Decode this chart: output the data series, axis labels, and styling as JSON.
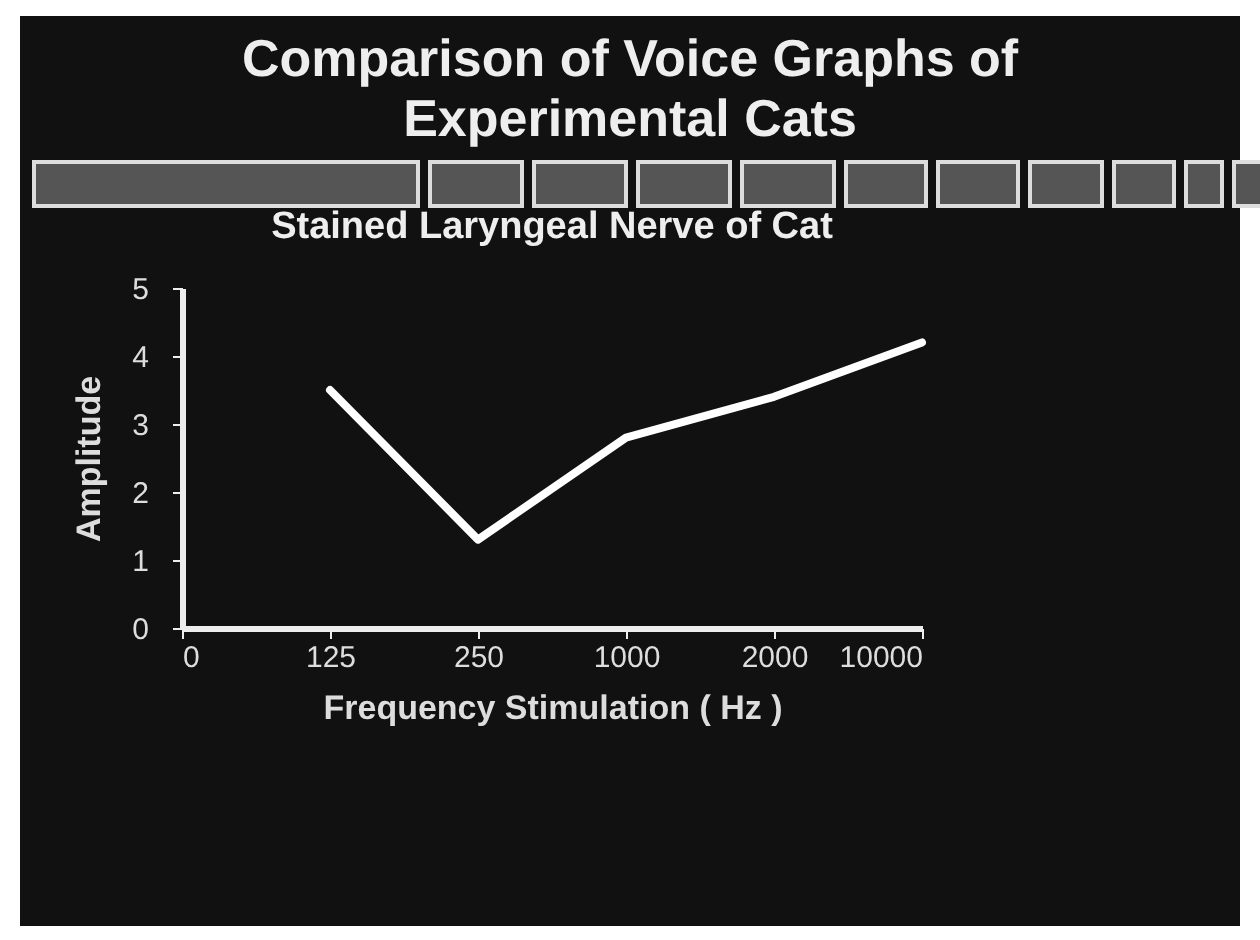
{
  "chart_data": {
    "type": "line",
    "title": "Comparison of Voice Graphs of Experimental Cats",
    "subtitle": "Stained Laryngeal Nerve of Cat",
    "xlabel": "Frequency Stimulation ( Hz )",
    "ylabel": "Amplitude",
    "categories": [
      "0",
      "125",
      "250",
      "1000",
      "2000",
      "10000"
    ],
    "series": [
      {
        "color": "#ffffff",
        "values": [
          null,
          3.5,
          1.3,
          2.8,
          3.4,
          4.2
        ]
      }
    ],
    "ylim": [
      0,
      5
    ],
    "yticks": [
      0,
      1,
      2,
      3,
      4,
      5
    ],
    "grid": false,
    "legend": false,
    "marker": "none"
  }
}
